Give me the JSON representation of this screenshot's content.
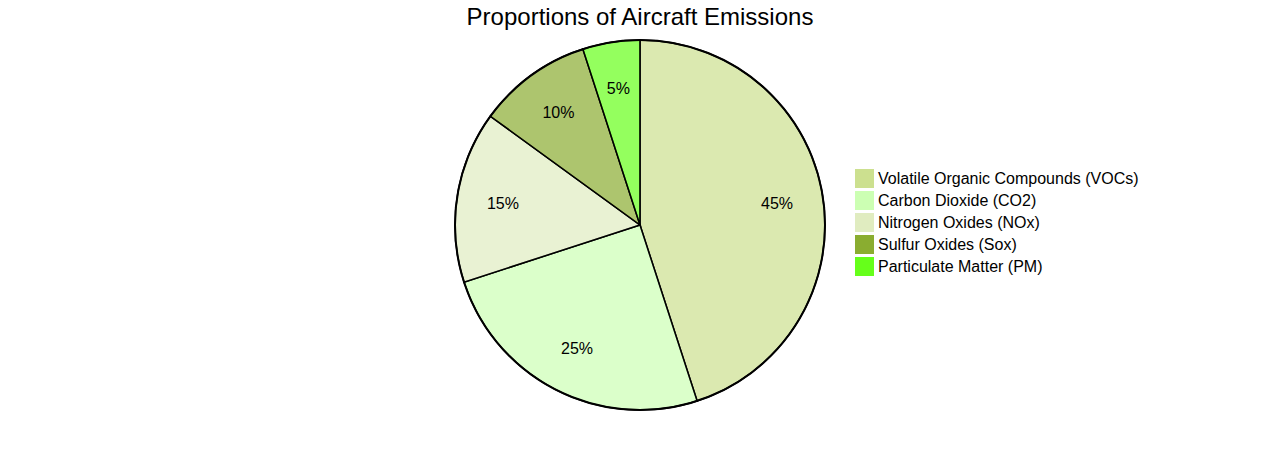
{
  "chart_data": {
    "type": "pie",
    "title": "Proportions of Aircraft Emissions",
    "categories": [
      "Volatile Organic Compounds (VOCs)",
      "Carbon Dioxide (CO2)",
      "Nitrogen Oxides (NOx)",
      "Sulfur Oxides (Sox)",
      "Particulate Matter (PM)"
    ],
    "values": [
      45,
      25,
      15,
      10,
      5
    ],
    "value_labels": [
      "45%",
      "25%",
      "15%",
      "10%",
      "5%"
    ],
    "colors": [
      "#cce08f",
      "#ccffb3",
      "#e0ecc0",
      "#8aad30",
      "#66ff1a"
    ],
    "data_labels": true,
    "legend": "right"
  }
}
